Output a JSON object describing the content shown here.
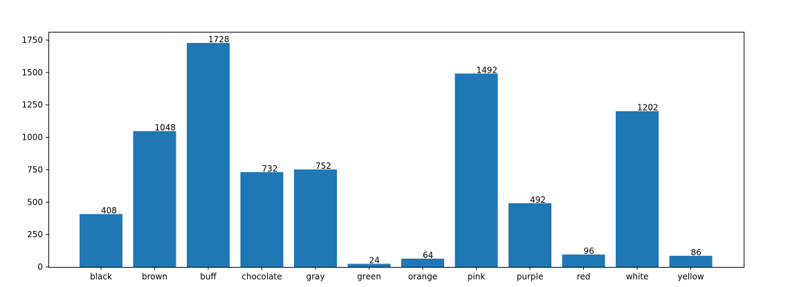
{
  "chart_data": {
    "type": "bar",
    "title": "",
    "xlabel": "",
    "ylabel": "",
    "categories": [
      "black",
      "brown",
      "buff",
      "chocolate",
      "gray",
      "green",
      "orange",
      "pink",
      "purple",
      "red",
      "white",
      "yellow"
    ],
    "values": [
      408,
      1048,
      1728,
      732,
      752,
      24,
      64,
      1492,
      492,
      96,
      1202,
      86
    ],
    "data_labels": [
      "408",
      "1048",
      "1728",
      "732",
      "752",
      "24",
      "64",
      "1492",
      "492",
      "96",
      "1202",
      "86"
    ],
    "ylim": [
      0,
      1814
    ],
    "yticks": [
      0,
      250,
      500,
      750,
      1000,
      1250,
      1500,
      1750
    ],
    "ytick_labels": [
      "0",
      "250",
      "500",
      "750",
      "1000",
      "1250",
      "1500",
      "1750"
    ],
    "grid": false,
    "legend": "none",
    "bar_color": "#1f77b4"
  }
}
